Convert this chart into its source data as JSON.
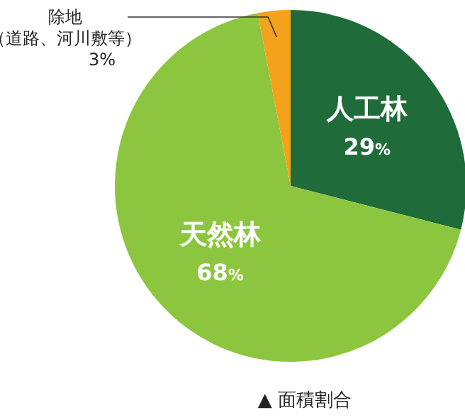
{
  "chart_data": {
    "type": "pie",
    "categories": [
      "人工林",
      "天然林",
      "除地（道路、河川敷等）"
    ],
    "values": [
      29,
      68,
      3
    ],
    "colors": [
      "#1f6b3a",
      "#8cc63f",
      "#f4a11c"
    ],
    "value_labels": [
      "29%",
      "68%",
      "3%"
    ],
    "legend": false,
    "annotations": [
      "▲ 面積割合"
    ]
  }
}
